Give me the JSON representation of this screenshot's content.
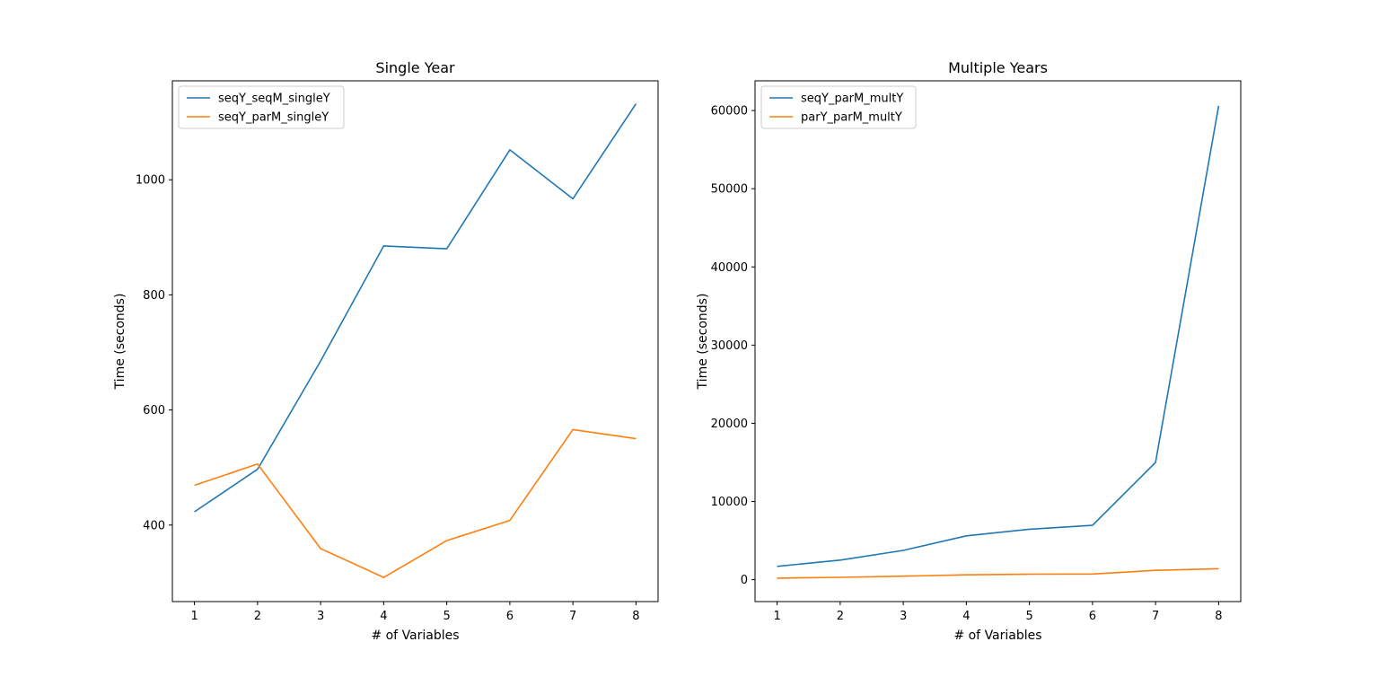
{
  "chart_data": [
    {
      "type": "line",
      "title": "Single Year",
      "xlabel": "# of Variables",
      "ylabel": "Time (seconds)",
      "x": [
        1,
        2,
        3,
        4,
        5,
        6,
        7,
        8
      ],
      "series": [
        {
          "name": "seqY_seqM_singleY",
          "color": "#1f77b4",
          "values": [
            423,
            497,
            685,
            885,
            880,
            1052,
            967,
            1132
          ]
        },
        {
          "name": "seqY_parM_singleY",
          "color": "#ff7f0e",
          "values": [
            469,
            506,
            359,
            309,
            373,
            408,
            566,
            550
          ]
        }
      ],
      "xlim": [
        0.65,
        8.35
      ],
      "ylim": [
        267,
        1172
      ],
      "yticks": [
        400,
        600,
        800,
        1000
      ],
      "xticks": [
        1,
        2,
        3,
        4,
        5,
        6,
        7,
        8
      ],
      "grid": false,
      "legend": "upper-left"
    },
    {
      "type": "line",
      "title": "Multiple Years",
      "xlabel": "# of Variables",
      "ylabel": "Time (seconds)",
      "x": [
        1,
        2,
        3,
        4,
        5,
        6,
        7,
        8
      ],
      "series": [
        {
          "name": "seqY_parM_multY",
          "color": "#1f77b4",
          "values": [
            1700,
            2500,
            3750,
            5600,
            6450,
            6950,
            15000,
            60600
          ]
        },
        {
          "name": "parY_parM_multY",
          "color": "#ff7f0e",
          "values": [
            200,
            300,
            450,
            620,
            700,
            730,
            1200,
            1400
          ]
        }
      ],
      "xlim": [
        0.65,
        8.35
      ],
      "ylim": [
        -2800,
        63800
      ],
      "yticks": [
        0,
        10000,
        20000,
        30000,
        40000,
        50000,
        60000
      ],
      "xticks": [
        1,
        2,
        3,
        4,
        5,
        6,
        7,
        8
      ],
      "grid": false,
      "legend": "upper-left"
    }
  ]
}
